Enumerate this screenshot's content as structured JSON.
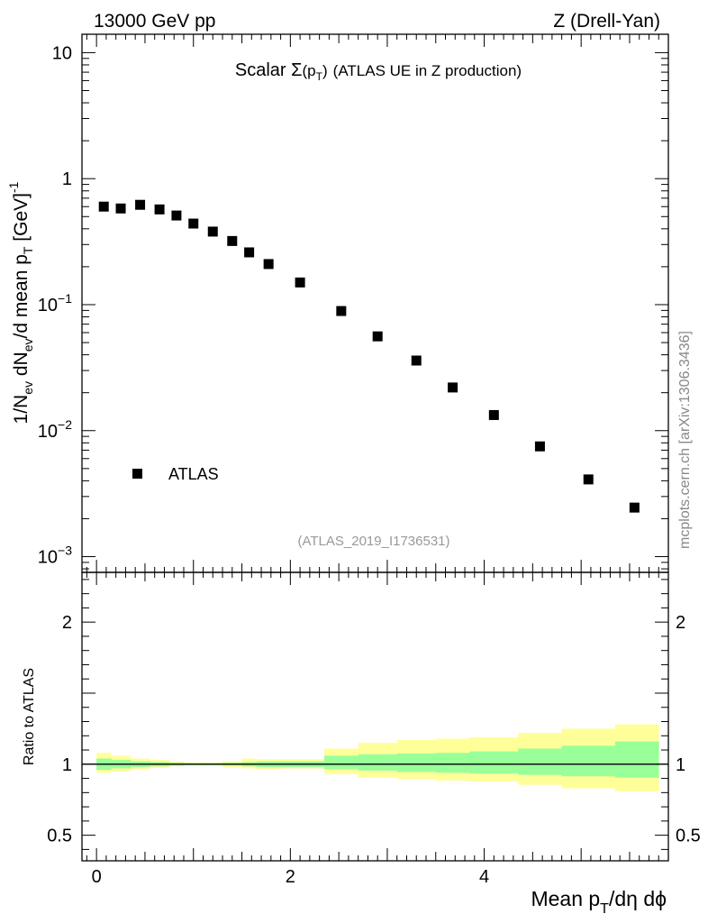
{
  "header": {
    "left_label": "13000 GeV pp",
    "right_label": "Z (Drell-Yan)"
  },
  "side_label": "mcplots.cern.ch [arXiv:1306.3436]",
  "chart_data": [
    {
      "type": "scatter",
      "name": "main-panel",
      "title": {
        "prefix": "Scalar ",
        "sigma": "Σ",
        "paren_open": "(p",
        "sub": "T",
        "paren_close": ")",
        "suffix": "(ATLAS UE in Z production)"
      },
      "reference": "(ATLAS_2019_I1736531)",
      "ylabel": {
        "p1": "1/N",
        "s1": "ev",
        "p2": " dN",
        "s2": "ev",
        "p3": "/d mean p",
        "s3": "T",
        "p4": " [GeV]",
        "sup": "-1"
      },
      "yscale": "log",
      "ylim": [
        0.00075,
        14
      ],
      "xlim": [
        -0.15,
        5.9
      ],
      "y_ticks": [
        {
          "value": 10,
          "label": "10"
        },
        {
          "value": 1,
          "label": "1"
        },
        {
          "value": 0.1,
          "base": "10",
          "exp": "−1"
        },
        {
          "value": 0.01,
          "base": "10",
          "exp": "−2"
        },
        {
          "value": 0.001,
          "base": "10",
          "exp": "−3"
        }
      ],
      "legend": {
        "label": "ATLAS",
        "position": "bottom-left"
      },
      "series": [
        {
          "name": "ATLAS",
          "marker": "square",
          "x": [
            0.075,
            0.25,
            0.45,
            0.65,
            0.825,
            1.0,
            1.2,
            1.4,
            1.575,
            1.775,
            2.1,
            2.525,
            2.9,
            3.3,
            3.675,
            4.1,
            4.575,
            5.075,
            5.55
          ],
          "y": [
            0.6,
            0.58,
            0.62,
            0.57,
            0.51,
            0.44,
            0.38,
            0.32,
            0.26,
            0.21,
            0.15,
            0.089,
            0.056,
            0.036,
            0.022,
            0.0133,
            0.0075,
            0.0041,
            0.00245
          ]
        }
      ]
    },
    {
      "type": "area",
      "name": "ratio-panel",
      "ylabel": "Ratio to ATLAS",
      "xlabel": {
        "p1": "Mean p",
        "sub": "T",
        "p2": "/dη dϕ"
      },
      "ylim": [
        0.32,
        2.35
      ],
      "xlim": [
        -0.15,
        5.9
      ],
      "x_ticks": [
        {
          "value": 0,
          "label": "0"
        },
        {
          "value": 2,
          "label": "2"
        },
        {
          "value": 4,
          "label": "4"
        }
      ],
      "y_ticks": [
        {
          "value": 2,
          "label": "2"
        },
        {
          "value": 1,
          "label": "1"
        },
        {
          "value": 0.5,
          "label": "0.5"
        }
      ],
      "reference_line": 1,
      "bands": {
        "x_edges": [
          0.0,
          0.15,
          0.35,
          0.55,
          0.75,
          0.9,
          1.1,
          1.3,
          1.5,
          1.65,
          1.9,
          2.35,
          2.7,
          3.1,
          3.5,
          3.85,
          4.35,
          4.8,
          5.35,
          5.8
        ],
        "green_low": [
          0.96,
          0.97,
          0.98,
          0.985,
          0.99,
          0.993,
          0.993,
          0.99,
          0.985,
          0.98,
          0.98,
          0.965,
          0.955,
          0.945,
          0.94,
          0.935,
          0.925,
          0.915,
          0.905
        ],
        "green_high": [
          1.04,
          1.03,
          1.02,
          1.015,
          1.01,
          1.007,
          1.007,
          1.01,
          1.015,
          1.02,
          1.02,
          1.06,
          1.07,
          1.075,
          1.08,
          1.09,
          1.11,
          1.13,
          1.16
        ],
        "yellow_low": [
          0.94,
          0.95,
          0.965,
          0.975,
          0.985,
          0.99,
          0.99,
          0.98,
          0.97,
          0.965,
          0.97,
          0.93,
          0.905,
          0.895,
          0.885,
          0.88,
          0.855,
          0.83,
          0.81
        ],
        "yellow_high": [
          1.08,
          1.06,
          1.04,
          1.03,
          1.02,
          1.012,
          1.012,
          1.02,
          1.04,
          1.035,
          1.035,
          1.11,
          1.15,
          1.17,
          1.18,
          1.19,
          1.22,
          1.25,
          1.28
        ]
      }
    }
  ],
  "colors": {
    "green_band": "#99ff99",
    "yellow_band": "#ffff99",
    "marker": "#000000",
    "reference_text": "#999999",
    "side_text": "#888888"
  }
}
